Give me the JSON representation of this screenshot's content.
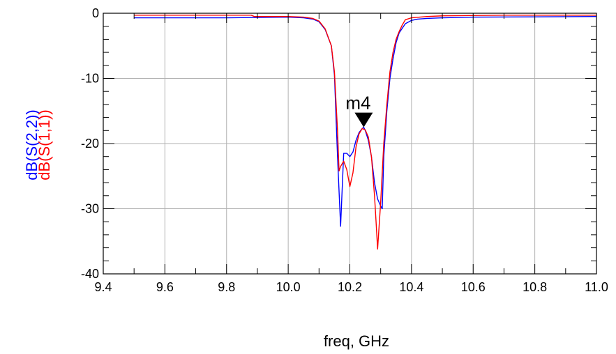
{
  "chart_data": {
    "type": "line",
    "xlabel": "freq, GHz",
    "ylabel": [
      "dB(S(2,2))",
      "dB(S(1,1))"
    ],
    "xlim": [
      9.4,
      11.0
    ],
    "ylim": [
      -40,
      0
    ],
    "grid": true,
    "x_ticks": [
      "9.4",
      "9.6",
      "9.8",
      "10.0",
      "10.2",
      "10.4",
      "10.6",
      "10.8",
      "11.0"
    ],
    "y_ticks": [
      "0",
      "-10",
      "-20",
      "-30",
      "-40"
    ],
    "series": [
      {
        "name": "dB(S(2,2))",
        "color": "#0000ff",
        "points": [
          [
            9.5,
            -0.7
          ],
          [
            9.8,
            -0.7
          ],
          [
            10.0,
            -0.6
          ],
          [
            10.05,
            -0.7
          ],
          [
            10.08,
            -0.9
          ],
          [
            10.1,
            -1.3
          ],
          [
            10.12,
            -2.5
          ],
          [
            10.14,
            -5.0
          ],
          [
            10.15,
            -9.5
          ],
          [
            10.16,
            -22.0
          ],
          [
            10.17,
            -32.7
          ],
          [
            10.18,
            -21.5
          ],
          [
            10.19,
            -21.5
          ],
          [
            10.2,
            -22.0
          ],
          [
            10.21,
            -21.3
          ],
          [
            10.22,
            -19.5
          ],
          [
            10.23,
            -18.3
          ],
          [
            10.24,
            -17.7
          ],
          [
            10.245,
            -17.5
          ],
          [
            10.25,
            -18.0
          ],
          [
            10.26,
            -19.5
          ],
          [
            10.27,
            -22.0
          ],
          [
            10.28,
            -26.0
          ],
          [
            10.29,
            -28.5
          ],
          [
            10.3,
            -29.6
          ],
          [
            10.305,
            -30.0
          ],
          [
            10.31,
            -22.0
          ],
          [
            10.32,
            -15.0
          ],
          [
            10.33,
            -10.0
          ],
          [
            10.34,
            -7.0
          ],
          [
            10.35,
            -4.5
          ],
          [
            10.36,
            -3.0
          ],
          [
            10.38,
            -1.6
          ],
          [
            10.4,
            -1.1
          ],
          [
            10.42,
            -0.9
          ],
          [
            10.45,
            -0.8
          ],
          [
            10.5,
            -0.7
          ],
          [
            10.6,
            -0.6
          ],
          [
            10.8,
            -0.55
          ],
          [
            11.0,
            -0.5
          ]
        ]
      },
      {
        "name": "dB(S(1,1))",
        "color": "#ff0000",
        "points": [
          [
            9.5,
            -0.3
          ],
          [
            9.8,
            -0.3
          ],
          [
            9.88,
            -0.3
          ],
          [
            9.89,
            -0.5
          ],
          [
            10.0,
            -0.5
          ],
          [
            10.05,
            -0.6
          ],
          [
            10.08,
            -0.8
          ],
          [
            10.1,
            -1.2
          ],
          [
            10.12,
            -2.4
          ],
          [
            10.14,
            -5.0
          ],
          [
            10.15,
            -9.0
          ],
          [
            10.16,
            -18.0
          ],
          [
            10.165,
            -24.2
          ],
          [
            10.17,
            -23.5
          ],
          [
            10.18,
            -22.7
          ],
          [
            10.19,
            -24.0
          ],
          [
            10.2,
            -26.6
          ],
          [
            10.21,
            -24.5
          ],
          [
            10.22,
            -20.5
          ],
          [
            10.23,
            -18.5
          ],
          [
            10.24,
            -17.7
          ],
          [
            10.25,
            -17.9
          ],
          [
            10.26,
            -19.0
          ],
          [
            10.27,
            -22.0
          ],
          [
            10.28,
            -28.0
          ],
          [
            10.285,
            -32.0
          ],
          [
            10.29,
            -36.2
          ],
          [
            10.3,
            -29.0
          ],
          [
            10.31,
            -20.0
          ],
          [
            10.32,
            -14.0
          ],
          [
            10.33,
            -9.0
          ],
          [
            10.34,
            -6.0
          ],
          [
            10.35,
            -4.0
          ],
          [
            10.36,
            -2.8
          ],
          [
            10.37,
            -1.8
          ],
          [
            10.38,
            -1.0
          ],
          [
            10.4,
            -0.7
          ],
          [
            10.45,
            -0.5
          ],
          [
            10.5,
            -0.4
          ],
          [
            10.7,
            -0.3
          ],
          [
            11.0,
            -0.3
          ]
        ]
      }
    ],
    "markers": [
      {
        "label": "m4",
        "x": 10.245,
        "y": -17.5
      }
    ]
  }
}
